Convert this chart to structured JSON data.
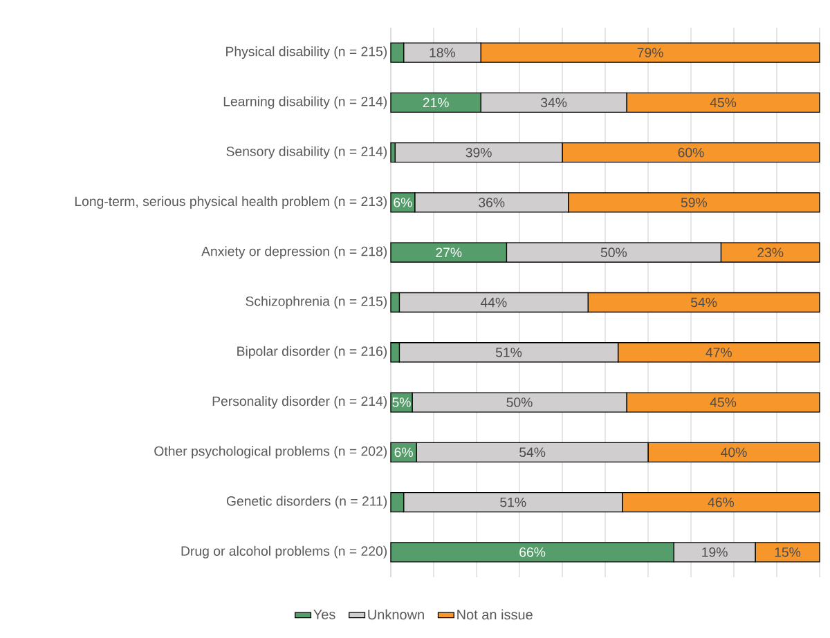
{
  "chart_data": {
    "type": "bar",
    "orientation": "horizontal",
    "stacked": true,
    "categories": [
      "Physical disability (n = 215)",
      "Learning disability (n = 214)",
      "Sensory disability (n = 214)",
      "Long-term, serious physical health problem (n = 213)",
      "Anxiety or depression (n = 218)",
      "Schizophrenia (n = 215)",
      "Bipolar disorder (n = 216)",
      "Personality disorder (n = 214)",
      "Other psychological problems (n = 202)",
      "Genetic disorders (n = 211)",
      "Drug or alcohol problems (n = 220)"
    ],
    "series": [
      {
        "name": "Yes",
        "color": "#559e6b",
        "values": [
          3,
          21,
          1,
          5.6,
          27,
          2,
          2,
          5,
          6,
          3,
          66
        ],
        "value_labels": [
          null,
          "21%",
          null,
          "6%",
          "27%",
          null,
          null,
          "5%",
          "6%",
          null,
          "66%"
        ]
      },
      {
        "name": "Unknown",
        "color": "#d0cece",
        "values": [
          18,
          34,
          39,
          35.8,
          50,
          44,
          51,
          50,
          54,
          51,
          19
        ],
        "value_labels": [
          "18%",
          "34%",
          "39%",
          "36%",
          "50%",
          "44%",
          "51%",
          "50%",
          "54%",
          "51%",
          "19%"
        ]
      },
      {
        "name": "Not an issue",
        "color": "#f7962a",
        "values": [
          79,
          45,
          60,
          58.6,
          23,
          54,
          47,
          45,
          40,
          46,
          15
        ],
        "value_labels": [
          "79%",
          "45%",
          "60%",
          "59%",
          "23%",
          "54%",
          "47%",
          "45%",
          "40%",
          "46%",
          "15%"
        ]
      }
    ],
    "grid": "x",
    "legend": "bottom",
    "tick_labels": "y"
  }
}
